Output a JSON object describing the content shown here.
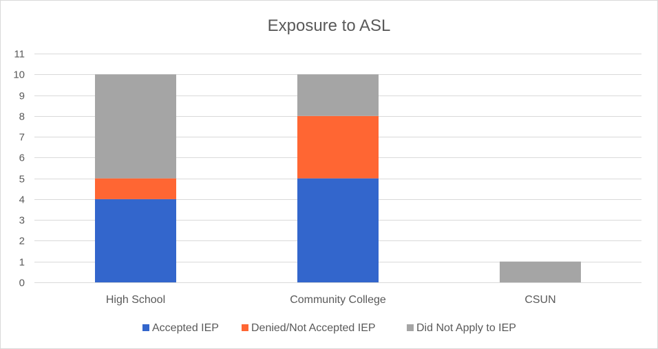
{
  "chart_data": {
    "type": "bar",
    "stacked": true,
    "title": "Exposure to ASL",
    "xlabel": "",
    "ylabel": "",
    "categories": [
      "High School",
      "Community College",
      "CSUN"
    ],
    "series": [
      {
        "name": "Accepted IEP",
        "color": "#3366cc",
        "values": [
          4,
          5,
          0
        ]
      },
      {
        "name": "Denied/Not Accepted IEP",
        "color": "#ff6633",
        "values": [
          1,
          3,
          0
        ]
      },
      {
        "name": "Did Not Apply to IEP",
        "color": "#a5a5a5",
        "values": [
          5,
          2,
          1
        ]
      }
    ],
    "ylim": [
      0,
      11
    ],
    "yticks": [
      0,
      1,
      2,
      3,
      4,
      5,
      6,
      7,
      8,
      9,
      10,
      11
    ],
    "grid": true,
    "legend": "bottom"
  }
}
